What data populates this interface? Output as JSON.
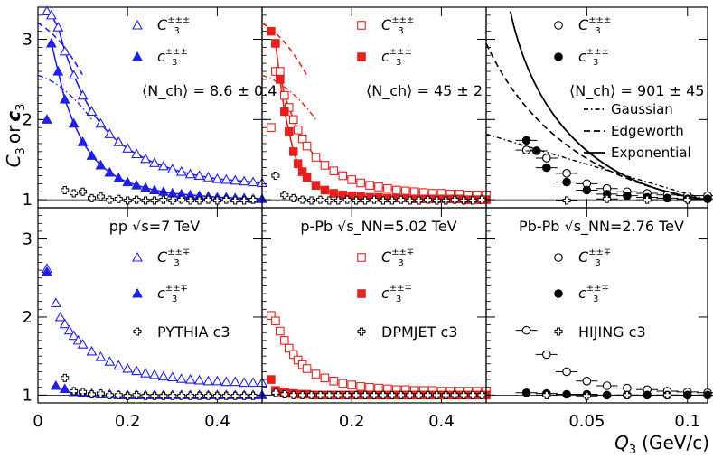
{
  "chart_data": {
    "type": "scatter",
    "title": "",
    "xlabel": "Q3 (GeV/c)",
    "ylabel": "C3 or c3",
    "grid": false,
    "ylim": [
      0.9,
      3.4
    ],
    "y_ticks": [
      "1",
      "2",
      "3"
    ],
    "x_tick_groups": [
      {
        "ticks": [
          "0",
          "0.2",
          "0.4"
        ]
      },
      {
        "ticks": [
          "0.2",
          "0.4"
        ]
      },
      {
        "ticks": [
          "0.05",
          "0.1"
        ]
      }
    ],
    "panels": [
      {
        "row": 0,
        "col": 0,
        "system": "pp",
        "xlim": [
          0.0,
          0.5
        ],
        "multiplicity_label": "⟨N_ch⟩ = 8.6 ± 0.4",
        "legend": [
          "C3 ±±±",
          "c3 ±±±"
        ],
        "color": "#1f1fe6",
        "series": [
          {
            "name": "C3 same-sign",
            "marker": "triangle-open",
            "x": [
              0.02,
              0.03,
              0.045,
              0.06,
              0.08,
              0.1,
              0.12,
              0.14,
              0.16,
              0.18,
              0.2,
              0.22,
              0.24,
              0.26,
              0.28,
              0.3,
              0.32,
              0.34,
              0.36,
              0.38,
              0.4,
              0.42,
              0.44,
              0.46,
              0.48,
              0.5
            ],
            "y": [
              3.35,
              3.3,
              3.15,
              2.85,
              2.55,
              2.3,
              2.1,
              1.95,
              1.82,
              1.72,
              1.64,
              1.57,
              1.51,
              1.46,
              1.42,
              1.38,
              1.35,
              1.32,
              1.3,
              1.28,
              1.26,
              1.25,
              1.24,
              1.23,
              1.22,
              1.21
            ]
          },
          {
            "name": "c3 same-sign",
            "marker": "triangle-filled",
            "x": [
              0.02,
              0.03,
              0.045,
              0.06,
              0.08,
              0.1,
              0.12,
              0.14,
              0.16,
              0.18,
              0.2,
              0.22,
              0.24,
              0.26,
              0.28,
              0.3,
              0.32,
              0.34,
              0.36,
              0.38,
              0.4,
              0.42,
              0.44,
              0.46,
              0.48,
              0.5
            ],
            "y": [
              2.0,
              2.95,
              2.6,
              2.25,
              1.95,
              1.72,
              1.55,
              1.43,
              1.34,
              1.27,
              1.22,
              1.18,
              1.15,
              1.12,
              1.1,
              1.08,
              1.07,
              1.06,
              1.05,
              1.04,
              1.03,
              1.03,
              1.02,
              1.02,
              1.01,
              1.01
            ]
          },
          {
            "name": "PYTHIA c3",
            "marker": "cross-open",
            "x": [
              0.06,
              0.08,
              0.1,
              0.12,
              0.14,
              0.16,
              0.18,
              0.2,
              0.22,
              0.24,
              0.26,
              0.28,
              0.3,
              0.32,
              0.34,
              0.36,
              0.38,
              0.4,
              0.42,
              0.44,
              0.46,
              0.48
            ],
            "y": [
              1.12,
              1.08,
              1.1,
              1.02,
              1.04,
              1.0,
              1.01,
              0.99,
              1.0,
              0.99,
              0.99,
              1.0,
              0.99,
              1.0,
              0.99,
              0.99,
              1.0,
              0.99,
              1.0,
              0.99,
              0.99,
              1.0
            ]
          }
        ]
      },
      {
        "row": 0,
        "col": 1,
        "system": "p-Pb",
        "xlim": [
          0.0,
          0.5
        ],
        "multiplicity_label": "⟨N_ch⟩ = 45 ± 2",
        "legend": [
          "C3 ±±±",
          "c3 ±±±"
        ],
        "color": "#e61f1f",
        "series": [
          {
            "name": "C3 same-sign",
            "marker": "square-open",
            "x": [
              0.02,
              0.03,
              0.04,
              0.05,
              0.06,
              0.07,
              0.08,
              0.09,
              0.1,
              0.12,
              0.14,
              0.16,
              0.18,
              0.2,
              0.22,
              0.24,
              0.26,
              0.28,
              0.3,
              0.32,
              0.34,
              0.36,
              0.38,
              0.4,
              0.42,
              0.44,
              0.46,
              0.48,
              0.5
            ],
            "y": [
              1.9,
              2.6,
              2.6,
              2.3,
              2.15,
              2.0,
              1.87,
              1.76,
              1.67,
              1.53,
              1.43,
              1.36,
              1.3,
              1.25,
              1.21,
              1.18,
              1.16,
              1.14,
              1.12,
              1.11,
              1.1,
              1.09,
              1.08,
              1.08,
              1.07,
              1.07,
              1.06,
              1.06,
              1.06
            ]
          },
          {
            "name": "c3 same-sign",
            "marker": "square-filled",
            "x": [
              0.02,
              0.03,
              0.04,
              0.05,
              0.06,
              0.07,
              0.08,
              0.09,
              0.1,
              0.12,
              0.14,
              0.16,
              0.18,
              0.2,
              0.22,
              0.24,
              0.26,
              0.28,
              0.3,
              0.32,
              0.34,
              0.36,
              0.38,
              0.4,
              0.42,
              0.44,
              0.46,
              0.48,
              0.5
            ],
            "y": [
              3.1,
              2.95,
              2.5,
              2.1,
              1.85,
              1.6,
              1.45,
              1.35,
              1.28,
              1.18,
              1.12,
              1.08,
              1.06,
              1.05,
              1.04,
              1.03,
              1.03,
              1.02,
              1.02,
              1.02,
              1.01,
              1.01,
              1.01,
              1.01,
              1.01,
              1.01,
              1.0,
              1.0,
              1.0
            ]
          },
          {
            "name": "DPMJET c3",
            "marker": "cross-open",
            "x": [
              0.03,
              0.05,
              0.07,
              0.09,
              0.11,
              0.13,
              0.15,
              0.17,
              0.19,
              0.21,
              0.23,
              0.25,
              0.27,
              0.29,
              0.31,
              0.33,
              0.35,
              0.37,
              0.39,
              0.41,
              0.43,
              0.45,
              0.47,
              0.49
            ],
            "y": [
              1.3,
              1.06,
              1.02,
              1.0,
              0.99,
              1.0,
              0.99,
              0.99,
              1.0,
              0.99,
              0.99,
              1.0,
              0.99,
              0.99,
              1.0,
              0.99,
              0.99,
              1.0,
              0.99,
              0.99,
              1.0,
              0.99,
              0.99,
              1.0
            ]
          }
        ]
      },
      {
        "row": 0,
        "col": 2,
        "system": "Pb-Pb",
        "xlim": [
          0.0,
          0.11
        ],
        "multiplicity_label": "⟨N_ch⟩ = 901 ± 45",
        "legend": [
          "C3 ±±±",
          "c3 ±±±",
          "Gaussian",
          "Edgeworth",
          "Exponential"
        ],
        "color": "#000000",
        "series": [
          {
            "name": "C3 same-sign",
            "marker": "circle-open",
            "x": [
              0.02,
              0.03,
              0.04,
              0.05,
              0.06,
              0.07,
              0.08,
              0.09,
              0.1,
              0.11
            ],
            "y": [
              1.62,
              1.52,
              1.33,
              1.2,
              1.14,
              1.1,
              1.08,
              1.06,
              1.05,
              1.05
            ]
          },
          {
            "name": "c3 same-sign",
            "marker": "circle-filled",
            "x": [
              0.02,
              0.025,
              0.03,
              0.04,
              0.05,
              0.06,
              0.07,
              0.08,
              0.09,
              0.1,
              0.11
            ],
            "y": [
              1.74,
              1.61,
              1.4,
              1.22,
              1.12,
              1.07,
              1.05,
              1.03,
              1.02,
              1.01,
              1.01
            ]
          },
          {
            "name": "HIJING c3",
            "marker": "cross-open",
            "x": [
              0.04,
              0.06,
              0.08,
              0.1
            ],
            "y": [
              0.99,
              1.01,
              1.0,
              1.0
            ]
          }
        ]
      },
      {
        "row": 1,
        "col": 0,
        "system": "pp",
        "xlim": [
          0.0,
          0.5
        ],
        "energy_label": "pp √s=7 TeV",
        "legend": [
          "C3 ±±∓",
          "c3 ±±∓",
          "PYTHIA c3"
        ],
        "color": "#1f1fe6",
        "series": [
          {
            "name": "C3 mixed-charge",
            "marker": "triangle-open",
            "x": [
              0.02,
              0.04,
              0.05,
              0.06,
              0.07,
              0.08,
              0.09,
              0.1,
              0.12,
              0.14,
              0.16,
              0.18,
              0.2,
              0.22,
              0.24,
              0.26,
              0.28,
              0.3,
              0.32,
              0.34,
              0.36,
              0.38,
              0.4,
              0.42,
              0.44,
              0.46,
              0.48,
              0.5
            ],
            "y": [
              2.62,
              2.18,
              2.0,
              1.91,
              1.83,
              1.76,
              1.7,
              1.65,
              1.56,
              1.49,
              1.43,
              1.38,
              1.34,
              1.31,
              1.28,
              1.26,
              1.24,
              1.23,
              1.21,
              1.2,
              1.19,
              1.18,
              1.18,
              1.17,
              1.17,
              1.16,
              1.16,
              1.16
            ]
          },
          {
            "name": "c3 mixed-charge",
            "marker": "triangle-filled",
            "x": [
              0.02,
              0.04,
              0.06,
              0.08,
              0.1,
              0.12,
              0.14,
              0.16,
              0.18,
              0.2,
              0.22,
              0.24,
              0.26,
              0.28,
              0.3,
              0.32,
              0.34,
              0.36,
              0.38,
              0.4,
              0.42,
              0.44,
              0.46,
              0.48,
              0.5
            ],
            "y": [
              2.58,
              1.12,
              1.08,
              1.04,
              1.03,
              1.02,
              1.01,
              1.01,
              1.0,
              1.0,
              1.0,
              1.0,
              1.0,
              1.0,
              1.0,
              1.0,
              1.0,
              1.0,
              1.0,
              1.0,
              1.0,
              1.0,
              1.0,
              1.0,
              1.0
            ]
          },
          {
            "name": "PYTHIA c3",
            "marker": "cross-open",
            "x": [
              0.06,
              0.08,
              0.1,
              0.12,
              0.14,
              0.16,
              0.18,
              0.2,
              0.22,
              0.24,
              0.26,
              0.28,
              0.3,
              0.32,
              0.34,
              0.36,
              0.38,
              0.4,
              0.42,
              0.44,
              0.46,
              0.48
            ],
            "y": [
              1.22,
              1.05,
              1.04,
              1.01,
              1.02,
              1.0,
              1.0,
              0.99,
              1.0,
              0.99,
              0.99,
              0.99,
              0.99,
              0.99,
              0.99,
              0.99,
              0.99,
              0.99,
              0.99,
              0.99,
              0.99,
              0.99
            ]
          }
        ]
      },
      {
        "row": 1,
        "col": 1,
        "system": "p-Pb",
        "xlim": [
          0.0,
          0.5
        ],
        "energy_label": "p-Pb √s_NN=5.02 TeV",
        "legend": [
          "C3 ±±∓",
          "c3 ±±∓",
          "DPMJET c3"
        ],
        "color": "#e61f1f",
        "series": [
          {
            "name": "C3 mixed-charge",
            "marker": "square-open",
            "x": [
              0.02,
              0.03,
              0.04,
              0.05,
              0.06,
              0.07,
              0.08,
              0.09,
              0.1,
              0.12,
              0.14,
              0.16,
              0.18,
              0.2,
              0.22,
              0.24,
              0.26,
              0.28,
              0.3,
              0.32,
              0.34,
              0.36,
              0.38,
              0.4,
              0.42,
              0.44,
              0.46,
              0.48,
              0.5
            ],
            "y": [
              2.02,
              1.95,
              1.82,
              1.7,
              1.6,
              1.52,
              1.45,
              1.39,
              1.34,
              1.27,
              1.22,
              1.18,
              1.15,
              1.13,
              1.11,
              1.1,
              1.09,
              1.08,
              1.07,
              1.07,
              1.06,
              1.06,
              1.06,
              1.05,
              1.05,
              1.05,
              1.05,
              1.05,
              1.05
            ]
          },
          {
            "name": "c3 mixed-charge",
            "marker": "square-filled",
            "x": [
              0.02,
              0.03,
              0.04,
              0.05,
              0.06,
              0.07,
              0.08,
              0.09,
              0.1,
              0.12,
              0.14,
              0.16,
              0.18,
              0.2,
              0.22,
              0.24,
              0.26,
              0.28,
              0.3,
              0.32,
              0.34,
              0.36,
              0.38,
              0.4,
              0.42,
              0.44,
              0.46,
              0.48,
              0.5
            ],
            "y": [
              1.2,
              1.06,
              1.04,
              1.03,
              1.02,
              1.02,
              1.01,
              1.01,
              1.01,
              1.0,
              1.0,
              1.0,
              1.0,
              1.0,
              1.0,
              1.0,
              1.0,
              1.0,
              1.0,
              1.0,
              1.0,
              1.0,
              1.0,
              1.0,
              1.0,
              1.0,
              1.0,
              1.0,
              1.0
            ]
          },
          {
            "name": "DPMJET c3",
            "marker": "cross-open",
            "x": [
              0.03,
              0.05,
              0.07,
              0.09,
              0.11,
              0.13,
              0.15,
              0.17,
              0.19,
              0.21,
              0.23,
              0.25,
              0.27,
              0.29,
              0.31,
              0.33,
              0.35,
              0.37,
              0.39,
              0.41,
              0.43,
              0.45,
              0.47,
              0.49
            ],
            "y": [
              1.03,
              1.01,
              1.0,
              1.0,
              1.0,
              1.0,
              1.0,
              1.0,
              1.0,
              1.0,
              1.0,
              1.0,
              1.0,
              1.0,
              1.0,
              1.0,
              1.0,
              1.0,
              1.0,
              1.0,
              1.0,
              1.0,
              1.0,
              1.0
            ]
          }
        ]
      },
      {
        "row": 1,
        "col": 2,
        "system": "Pb-Pb",
        "xlim": [
          0.0,
          0.11
        ],
        "energy_label": "Pb-Pb √s_NN=2.76 TeV",
        "legend": [
          "C3 ±±∓",
          "c3 ±±∓",
          "HIJING c3"
        ],
        "color": "#000000",
        "series": [
          {
            "name": "C3 mixed-charge",
            "marker": "circle-open",
            "x": [
              0.02,
              0.03,
              0.04,
              0.05,
              0.06,
              0.07,
              0.08,
              0.09,
              0.1,
              0.11
            ],
            "y": [
              1.83,
              1.52,
              1.3,
              1.18,
              1.12,
              1.09,
              1.07,
              1.05,
              1.04,
              1.03
            ]
          },
          {
            "name": "c3 mixed-charge",
            "marker": "circle-filled",
            "x": [
              0.02,
              0.03,
              0.04,
              0.05,
              0.06,
              0.07,
              0.08,
              0.09,
              0.1,
              0.11
            ],
            "y": [
              1.03,
              1.02,
              1.01,
              1.01,
              1.0,
              1.0,
              1.0,
              1.0,
              1.0,
              1.0
            ]
          },
          {
            "name": "HIJING c3",
            "marker": "cross-open",
            "x": [
              0.03,
              0.05,
              0.07,
              0.09
            ],
            "y": [
              1.0,
              0.99,
              1.0,
              1.0
            ]
          }
        ]
      }
    ]
  },
  "labels": {
    "ylabel_main": "C",
    "ylabel_sub": "3",
    "ylabel_or": "or",
    "ylabel_c": "c",
    "xlabel_main": "Q",
    "xlabel_sub": "3",
    "xlabel_units": "(GeV/c)"
  }
}
